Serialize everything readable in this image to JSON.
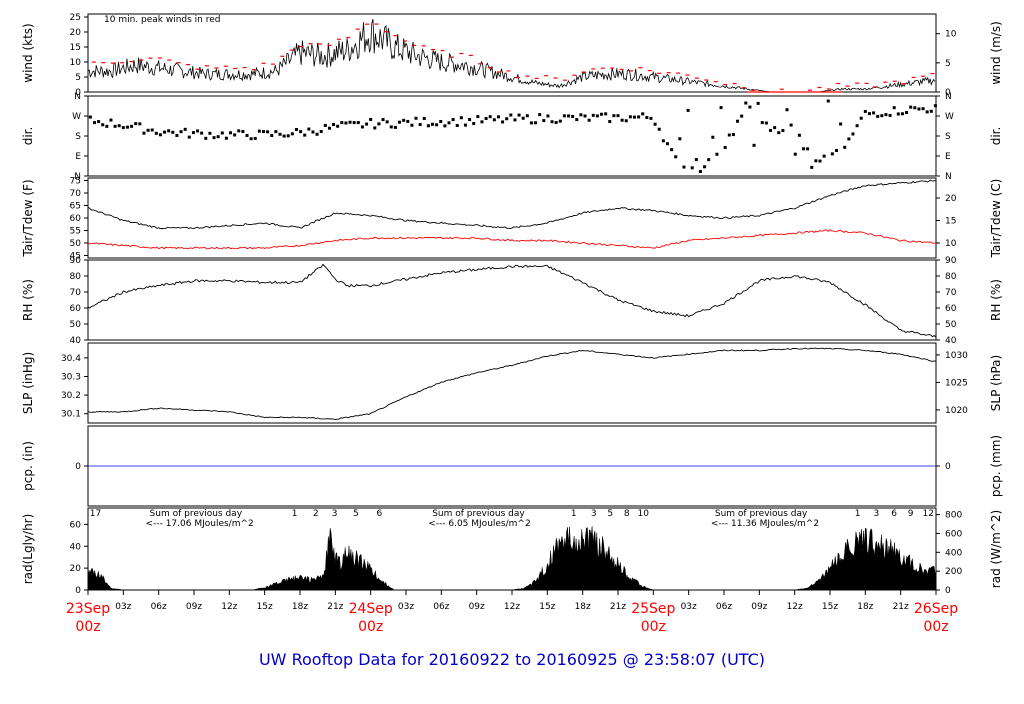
{
  "title": "UW Rooftop Data for 20160922  to  20160925 @ 23:58:07  (UTC)",
  "colors": {
    "wind": "#000000",
    "peak": "#ff0000",
    "dew": "#ff0000",
    "pcp": "#0000ff",
    "annot": "#9900cc",
    "title": "#0000cc",
    "date": "#ff0000"
  },
  "x_axis": {
    "time_ticks": [
      "03z",
      "06z",
      "09z",
      "12z",
      "15z",
      "18z",
      "21z",
      "03z",
      "06z",
      "09z",
      "12z",
      "15z",
      "18z",
      "21z",
      "03z",
      "06z",
      "09z",
      "12z",
      "15z",
      "18z",
      "21z"
    ],
    "day_labels": [
      {
        "date": "23Sep",
        "hour": "00z"
      },
      {
        "date": "24Sep",
        "hour": "00z"
      },
      {
        "date": "25Sep",
        "hour": "00z"
      },
      {
        "date": "26Sep",
        "hour": "00z"
      }
    ]
  },
  "chart_data": [
    {
      "type": "line",
      "id": "wind",
      "ylabel": "wind (kts)",
      "ylabel_right": "wind (m/s)",
      "ylim": [
        0,
        26
      ],
      "yticks": [
        "0",
        "5",
        "10",
        "15",
        "20",
        "25"
      ],
      "yticks_right": [
        "0",
        "5",
        "10"
      ],
      "annotation": "10 min. peak winds in red",
      "series": [
        {
          "hours": [
            0,
            2,
            4,
            6,
            8,
            10,
            12,
            14,
            16,
            18,
            20,
            22,
            24,
            26,
            28,
            30,
            32,
            34,
            36,
            38,
            40,
            42,
            44,
            46,
            48,
            50,
            52,
            54,
            56,
            58,
            60,
            62,
            64,
            66,
            68,
            70,
            72
          ],
          "values": [
            7,
            7,
            9,
            8,
            7,
            6,
            6,
            6,
            7,
            13,
            12,
            14,
            20,
            15,
            12,
            10,
            9,
            7,
            5,
            3,
            2,
            5,
            6,
            6,
            5,
            4,
            3,
            2,
            1,
            0,
            0,
            0,
            1,
            1,
            2,
            3,
            4
          ]
        },
        {
          "hours": [
            0,
            2,
            4,
            6,
            8,
            10,
            12,
            14,
            16,
            18,
            20,
            22,
            24,
            26,
            28,
            30,
            32,
            34,
            36,
            38,
            40,
            42,
            44,
            46,
            48,
            50,
            52,
            54,
            56,
            58,
            60,
            62,
            64,
            66,
            68,
            70,
            72
          ],
          "values": [
            9,
            10,
            11,
            11,
            9,
            8,
            8,
            8,
            10,
            16,
            15,
            18,
            24,
            19,
            15,
            13,
            12,
            9,
            6,
            5,
            4,
            7,
            8,
            8,
            7,
            6,
            5,
            3,
            2,
            0,
            0,
            1,
            2,
            2,
            3,
            4,
            6
          ]
        }
      ]
    },
    {
      "type": "scatter",
      "id": "dir",
      "ylabel": "dir.",
      "ylabel_right": "dir.",
      "ylim": [
        0,
        360
      ],
      "yticks": [
        "N",
        "E",
        "S",
        "W",
        "N"
      ],
      "yticks_right": [
        "N",
        "E",
        "S",
        "W",
        "N"
      ],
      "series": [
        {
          "hours": [
            0,
            3,
            6,
            9,
            12,
            15,
            18,
            21,
            24,
            27,
            30,
            33,
            36,
            39,
            42,
            45,
            48,
            50,
            52,
            54,
            56,
            58,
            60,
            62,
            64,
            66,
            68,
            70,
            72
          ],
          "values": [
            250,
            230,
            200,
            190,
            185,
            185,
            195,
            220,
            235,
            240,
            245,
            248,
            255,
            260,
            260,
            262,
            265,
            60,
            40,
            100,
            340,
            200,
            230,
            60,
            120,
            280,
            290,
            300,
            305
          ]
        }
      ]
    },
    {
      "type": "line",
      "id": "temp",
      "ylabel": "Tair/Tdew (F)",
      "ylabel_right": "Tair/Tdew (C)",
      "ylim": [
        44,
        76
      ],
      "yticks": [
        "45",
        "50",
        "55",
        "60",
        "65",
        "70",
        "75"
      ],
      "yticks_right": [
        "10",
        "15",
        "20"
      ],
      "series": [
        {
          "hours": [
            0,
            3,
            6,
            9,
            12,
            15,
            18,
            21,
            24,
            27,
            30,
            33,
            36,
            39,
            42,
            45,
            48,
            51,
            54,
            57,
            60,
            63,
            66,
            69,
            72
          ],
          "values": [
            64,
            59,
            56,
            56,
            57,
            58,
            56,
            62,
            61,
            59,
            58,
            57,
            56,
            58,
            62,
            64,
            63,
            61,
            60,
            61,
            64,
            69,
            73,
            74,
            75
          ]
        },
        {
          "hours": [
            0,
            3,
            6,
            9,
            12,
            15,
            18,
            21,
            24,
            27,
            30,
            33,
            36,
            39,
            42,
            45,
            48,
            51,
            54,
            57,
            60,
            63,
            66,
            69,
            72
          ],
          "values": [
            50,
            49,
            48,
            48,
            48,
            48,
            49,
            51,
            52,
            52,
            52,
            52,
            51,
            51,
            50,
            49,
            48,
            51,
            52,
            53,
            54,
            55,
            54,
            51,
            50
          ]
        }
      ]
    },
    {
      "type": "line",
      "id": "rh",
      "ylabel": "RH (%)",
      "ylabel_right": "RH (%)",
      "ylim": [
        40,
        90
      ],
      "yticks": [
        "40",
        "50",
        "60",
        "70",
        "80",
        "90"
      ],
      "yticks_right": [
        "40",
        "50",
        "60",
        "70",
        "80",
        "90"
      ],
      "series": [
        {
          "hours": [
            0,
            3,
            6,
            9,
            12,
            15,
            18,
            20,
            21,
            22,
            24,
            27,
            30,
            33,
            36,
            39,
            42,
            45,
            48,
            51,
            54,
            57,
            60,
            63,
            66,
            69,
            72
          ],
          "values": [
            60,
            70,
            74,
            77,
            77,
            76,
            76,
            87,
            78,
            74,
            74,
            78,
            82,
            84,
            86,
            86,
            76,
            65,
            58,
            55,
            63,
            77,
            80,
            76,
            62,
            46,
            42
          ]
        }
      ]
    },
    {
      "type": "line",
      "id": "slp",
      "ylabel": "SLP (inHg)",
      "ylabel_right": "SLP (hPa)",
      "ylim": [
        30.05,
        30.48
      ],
      "yticks": [
        "30.1",
        "30.2",
        "30.3",
        "30.4"
      ],
      "yticks_right": [
        "1020",
        "1025",
        "1030"
      ],
      "series": [
        {
          "hours": [
            0,
            3,
            6,
            9,
            12,
            15,
            18,
            21,
            24,
            27,
            30,
            33,
            36,
            39,
            42,
            45,
            48,
            51,
            54,
            57,
            60,
            63,
            66,
            69,
            72
          ],
          "values": [
            30.11,
            30.11,
            30.13,
            30.12,
            30.11,
            30.08,
            30.08,
            30.07,
            30.1,
            30.19,
            30.27,
            30.32,
            30.36,
            30.41,
            30.44,
            30.42,
            30.4,
            30.42,
            30.44,
            30.44,
            30.45,
            30.45,
            30.44,
            30.42,
            30.38
          ]
        }
      ]
    },
    {
      "type": "line",
      "id": "pcp",
      "ylabel": "pcp. (in)",
      "ylabel_right": "pcp. (mm)",
      "ylim": [
        -1,
        1
      ],
      "yticks": [
        "0"
      ],
      "yticks_right": [
        "0"
      ],
      "series": [
        {
          "hours": [
            0,
            72
          ],
          "values": [
            0,
            0
          ]
        }
      ]
    },
    {
      "type": "area",
      "id": "rad",
      "ylabel": "rad(Lgly/hr)",
      "ylabel_right": "rad (W/m^2)",
      "ylim": [
        0,
        75
      ],
      "yticks": [
        "0",
        "20",
        "40",
        "60"
      ],
      "yticks_right": [
        "0",
        "200",
        "400",
        "600",
        "800"
      ],
      "series": [
        {
          "hours": [
            0,
            1,
            2,
            3,
            8,
            12,
            14,
            15,
            16,
            17,
            18,
            19,
            20,
            20.5,
            21,
            21.5,
            22,
            23,
            24,
            25,
            26,
            36,
            37,
            38,
            39,
            40,
            41,
            42,
            43,
            44,
            45,
            46,
            47,
            48,
            60,
            61,
            62,
            63,
            64,
            65,
            66,
            67,
            68,
            69,
            70,
            71,
            72
          ],
          "values": [
            22,
            18,
            2,
            0,
            0,
            0,
            0,
            3,
            8,
            12,
            15,
            12,
            16,
            60,
            40,
            30,
            44,
            35,
            24,
            10,
            0,
            0,
            2,
            10,
            30,
            55,
            60,
            62,
            60,
            45,
            30,
            15,
            5,
            0,
            0,
            2,
            10,
            25,
            40,
            55,
            57,
            56,
            50,
            40,
            30,
            25,
            22
          ]
        }
      ],
      "annotations": [
        {
          "lines": [
            "Sum of previous day",
            "<--- 17.06 MJoules/m^2"
          ],
          "hour": 2
        },
        {
          "lines": [
            "Sum of previous day",
            "<--- 6.05 MJoules/m^2"
          ],
          "hour": 26
        },
        {
          "lines": [
            "Sum of previous day",
            "<--- 11.36 MJoules/m^2"
          ],
          "hour": 50
        }
      ],
      "hour_marks": [
        {
          "hour": 0.3,
          "text": "17"
        },
        {
          "hour": 17.2,
          "text": "1"
        },
        {
          "hour": 19,
          "text": "2"
        },
        {
          "hour": 20.6,
          "text": "3"
        },
        {
          "hour": 22.4,
          "text": "5"
        },
        {
          "hour": 24.4,
          "text": "6"
        },
        {
          "hour": 40.9,
          "text": "1"
        },
        {
          "hour": 42.6,
          "text": "3"
        },
        {
          "hour": 44,
          "text": "5"
        },
        {
          "hour": 45.4,
          "text": "8"
        },
        {
          "hour": 46.8,
          "text": "10"
        },
        {
          "hour": 65,
          "text": "1"
        },
        {
          "hour": 66.6,
          "text": "3"
        },
        {
          "hour": 68.1,
          "text": "6"
        },
        {
          "hour": 69.5,
          "text": "9"
        },
        {
          "hour": 71,
          "text": "12"
        }
      ]
    }
  ]
}
